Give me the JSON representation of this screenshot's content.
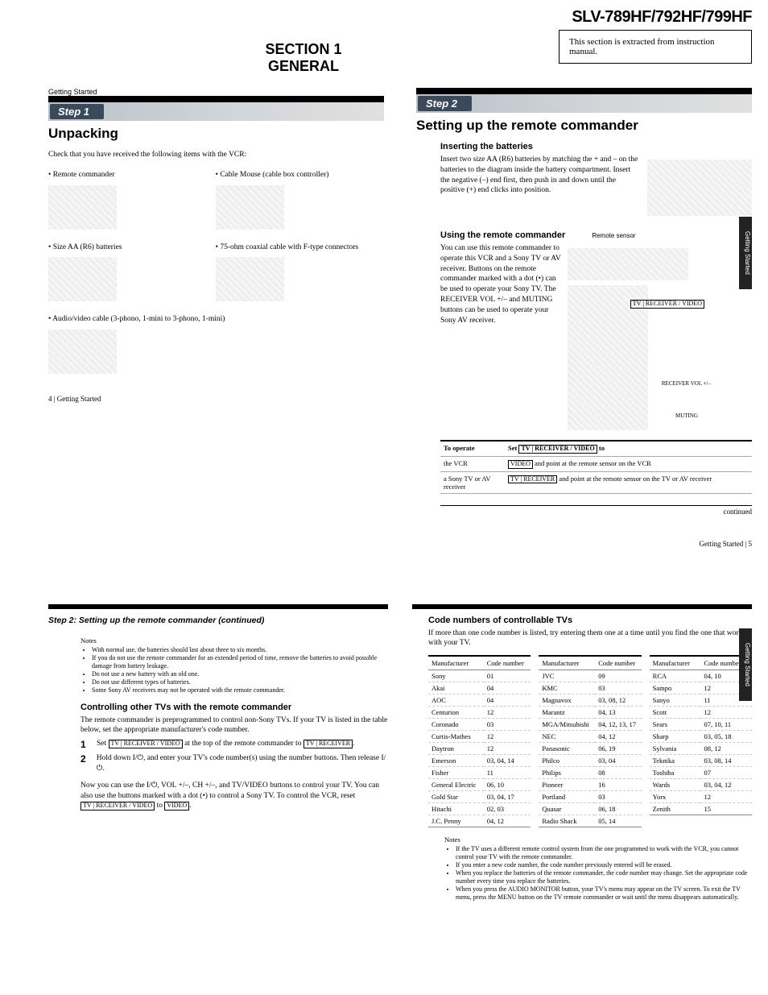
{
  "header": {
    "model": "SLV-789HF/792HF/799HF",
    "extract_note": "This section is extracted from instruction manual.",
    "section_line1": "SECTION 1",
    "section_line2": "GENERAL"
  },
  "upper_left": {
    "gs": "Getting Started",
    "step": "Step 1",
    "heading": "Unpacking",
    "intro": "Check that you have received the following items with the VCR:",
    "items": [
      "Remote commander",
      "Cable Mouse (cable box controller)",
      "Size AA (R6) batteries",
      "75-ohm coaxial cable with F-type connectors",
      "Audio/video cable (3-phono, 1-mini to 3-phono, 1-mini)"
    ],
    "footer": "4 | Getting Started"
  },
  "upper_right": {
    "step": "Step 2",
    "heading": "Setting up the remote commander",
    "tab": "Getting Started",
    "sec1_title": "Inserting the batteries",
    "sec1_body": "Insert two size AA (R6) batteries by matching the + and – on the batteries to the diagram inside the battery compartment. Insert the negative (–) end first, then push in and down until the positive (+) end clicks into position.",
    "sec2_title": "Using the remote commander",
    "sec2_label": "Remote sensor",
    "sec2_body": "You can use this remote commander to operate this VCR and a Sony TV or AV receiver. Buttons on the remote commander marked with a dot (•) can be used to operate your Sony TV. The RECEIVER VOL +/– and MUTING buttons can be used to operate your Sony AV receiver.",
    "callout_tv": "TV | RECEIVER / VIDEO",
    "callout_vol": "RECEIVER VOL +/–",
    "callout_mute": "MUTING",
    "table": {
      "h1": "To operate",
      "h2_pre": "Set",
      "h2_box": "TV | RECEIVER / VIDEO",
      "h2_post": "to",
      "r1_c1": "the VCR",
      "r1_box": "VIDEO",
      "r1_c2": "and point at the remote sensor on the VCR",
      "r2_c1": "a Sony TV or AV receiver",
      "r2_box": "TV | RECEIVER",
      "r2_c2": "and point at the remote sensor on the TV or AV receiver"
    },
    "continued": "continued",
    "footer": "Getting Started | 5"
  },
  "lower_left": {
    "cont_title": "Step 2: Setting up the remote commander (continued)",
    "notes_title": "Notes",
    "notes": [
      "With normal use, the batteries should last about three to six months.",
      "If you do not use the remote commander for an extended period of time, remove the batteries to avoid possible damage from battery leakage.",
      "Do not use a new battery with an old one.",
      "Do not use different types of batteries.",
      "Some Sony AV receivers may not be operated with the remote commander."
    ],
    "ctrl_title": "Controlling other TVs with the remote commander",
    "ctrl_body": "The remote commander is preprogrammed to control non-Sony TVs. If your TV is listed in the table below, set the appropriate manufacturer's code number.",
    "step1_pre": "Set",
    "step1_box1": "TV | RECEIVER / VIDEO",
    "step1_mid": "at the top of the remote commander to",
    "step1_box2": "TV | RECEIVER",
    "step1_post": ".",
    "step2": "Hold down I/⏻, and enter your TV's code number(s) using the number buttons. Then release I/⏻.",
    "closing_pre": "Now you can use the I/⏻, VOL +/–, CH +/–, and TV/VIDEO buttons to control your TV. You can also use the buttons marked with a dot (•) to control a Sony TV. To control the VCR, reset",
    "closing_box1": "TV | RECEIVER / VIDEO",
    "closing_mid": "to",
    "closing_box2": "VIDEO",
    "closing_post": "."
  },
  "lower_right": {
    "title": "Code numbers of controllable TVs",
    "intro": "If more than one code number is listed, try entering them one at a time until you find the one that works with your TV.",
    "headers": {
      "manu": "Manufacturer",
      "code": "Code number"
    },
    "col1": [
      [
        "Sony",
        "01"
      ],
      [
        "Akai",
        "04"
      ],
      [
        "AOC",
        "04"
      ],
      [
        "Centurion",
        "12"
      ],
      [
        "Coronado",
        "03"
      ],
      [
        "Curtis-Mathes",
        "12"
      ],
      [
        "Daytron",
        "12"
      ],
      [
        "Emerson",
        "03, 04, 14"
      ],
      [
        "Fisher",
        "11"
      ],
      [
        "General Electric",
        "06, 10"
      ],
      [
        "Gold Star",
        "03, 04, 17"
      ],
      [
        "Hitachi",
        "02, 03"
      ],
      [
        "J.C. Penny",
        "04, 12"
      ]
    ],
    "col2": [
      [
        "JVC",
        "09"
      ],
      [
        "KMC",
        "03"
      ],
      [
        "Magnavox",
        "03, 08, 12"
      ],
      [
        "Marantz",
        "04, 13"
      ],
      [
        "MGA/Mitsubishi",
        "04, 12, 13, 17"
      ],
      [
        "NEC",
        "04, 12"
      ],
      [
        "Panasonic",
        "06, 19"
      ],
      [
        "Philco",
        "03, 04"
      ],
      [
        "Philips",
        "08"
      ],
      [
        "Pioneer",
        "16"
      ],
      [
        "Portland",
        "03"
      ],
      [
        "Quasar",
        "06, 18"
      ],
      [
        "Radio Shack",
        "05, 14"
      ]
    ],
    "col3": [
      [
        "RCA",
        "04, 10"
      ],
      [
        "Sampo",
        "12"
      ],
      [
        "Sanyo",
        "11"
      ],
      [
        "Scott",
        "12"
      ],
      [
        "Sears",
        "07, 10, 11"
      ],
      [
        "Sharp",
        "03, 05, 18"
      ],
      [
        "Sylvania",
        "08, 12"
      ],
      [
        "Teknika",
        "03, 08, 14"
      ],
      [
        "Toshiba",
        "07"
      ],
      [
        "Wards",
        "03, 04, 12"
      ],
      [
        "Yorx",
        "12"
      ],
      [
        "Zenith",
        "15"
      ]
    ],
    "notes_title": "Notes",
    "notes": [
      "If the TV uses a different remote control system from the one programmed to work with the VCR, you cannot control your TV with the remote commander.",
      "If you enter a new code number, the code number previously entered will be erased.",
      "When you replace the batteries of the remote commander, the code number may change. Set the appropriate code number every time you replace the batteries.",
      "When you press the AUDIO MONITOR button, your TV's menu may appear on the TV screen. To exit the TV menu, press the MENU button on the TV remote commander or wait until the menu disappears automatically."
    ],
    "tab": "Getting Started"
  }
}
